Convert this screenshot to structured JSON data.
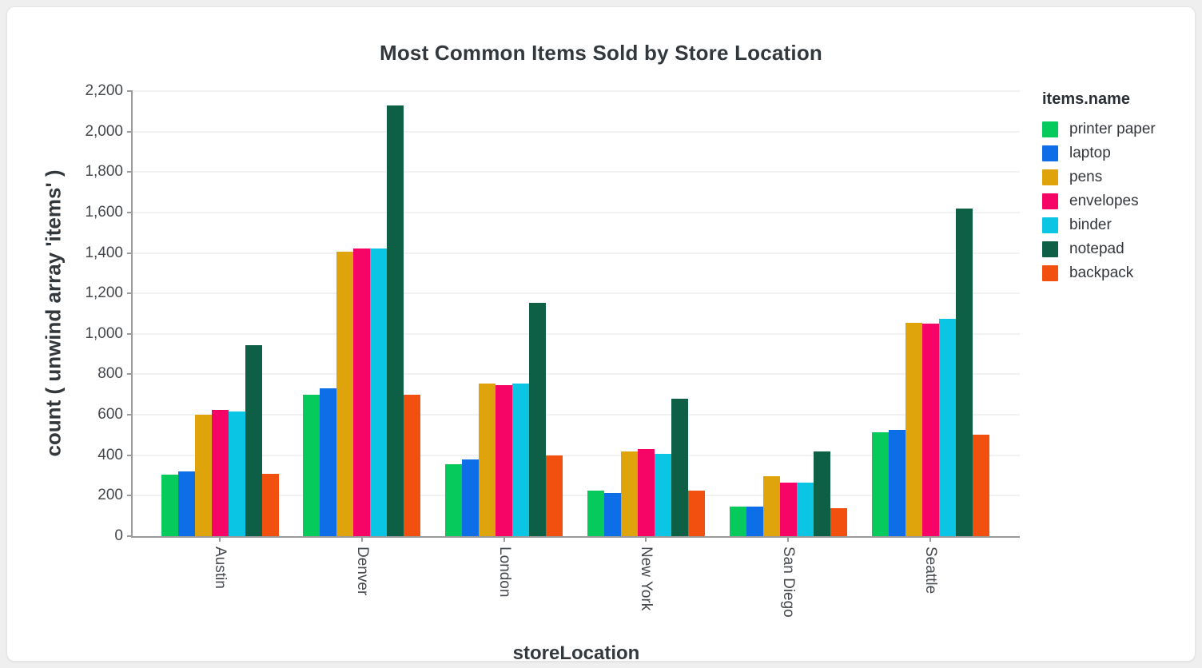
{
  "page": {
    "background": "#EFEFEF",
    "card_background": "#FFFFFF",
    "card_border": "#E4E4E4"
  },
  "chart_data": {
    "type": "bar",
    "title": "Most Common Items Sold by Store Location",
    "xlabel": "storeLocation",
    "ylabel": "count ( unwind array 'items' )",
    "legend_title": "items.name",
    "legend_position": "right",
    "grid": true,
    "ylim": [
      0,
      2200
    ],
    "ytick_step": 200,
    "categories": [
      "Austin",
      "Denver",
      "London",
      "New York",
      "San Diego",
      "Seattle"
    ],
    "series": [
      {
        "name": "printer paper",
        "color": "#06CA5C",
        "values": [
          305,
          700,
          355,
          225,
          145,
          515
        ]
      },
      {
        "name": "laptop",
        "color": "#0D6EE8",
        "values": [
          320,
          730,
          380,
          215,
          145,
          525
        ]
      },
      {
        "name": "pens",
        "color": "#DFA30C",
        "values": [
          600,
          1405,
          755,
          420,
          295,
          1055
        ]
      },
      {
        "name": "envelopes",
        "color": "#F70467",
        "values": [
          625,
          1420,
          745,
          430,
          265,
          1050
        ]
      },
      {
        "name": "binder",
        "color": "#0BC5E5",
        "values": [
          615,
          1420,
          755,
          405,
          265,
          1075
        ]
      },
      {
        "name": "notepad",
        "color": "#0D5F46",
        "values": [
          945,
          2130,
          1155,
          680,
          420,
          1620
        ]
      },
      {
        "name": "backpack",
        "color": "#F2500F",
        "values": [
          310,
          700,
          400,
          225,
          140,
          500
        ]
      }
    ]
  }
}
